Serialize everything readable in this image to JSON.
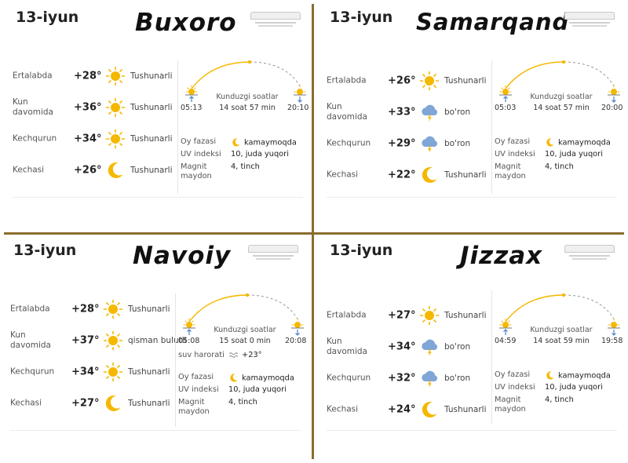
{
  "colors": {
    "divider": "#8a6d2e",
    "sun": "#f5b800",
    "moon": "#f5b800",
    "cloud": "#7fa6d6",
    "arc": "#f5b800"
  },
  "panels": [
    {
      "date": "13-iyun",
      "city": "Buxoro",
      "rows": [
        {
          "label": "Ertalabda",
          "temp": "+28°",
          "icon": "sun-icon",
          "condition": "Tushunarli"
        },
        {
          "label": "Kun davomida",
          "temp": "+36°",
          "icon": "sun-icon",
          "condition": "Tushunarli"
        },
        {
          "label": "Kechqurun",
          "temp": "+34°",
          "icon": "sun-icon",
          "condition": "Tushunarli"
        },
        {
          "label": "Kechasi",
          "temp": "+26°",
          "icon": "moon-icon",
          "condition": "Tushunarli"
        }
      ],
      "sunrise": "05:13",
      "sunset": "20:10",
      "daylight_label": "Kunduzgi soatlar",
      "daylight": "14 soat 57 min",
      "info": [
        {
          "key": "Oy fazasi",
          "value": "kamaymoqda",
          "icon": "moon-icon"
        },
        {
          "key": "UV indeksi",
          "value": "10, juda yuqori"
        },
        {
          "key": "Magnit maydon",
          "value": "4, tinch"
        }
      ]
    },
    {
      "date": "13-iyun",
      "city": "Samarqand",
      "rows": [
        {
          "label": "Ertalabda",
          "temp": "+26°",
          "icon": "sun-icon",
          "condition": "Tushunarli"
        },
        {
          "label": "Kun davomida",
          "temp": "+33°",
          "icon": "storm-cloud-icon",
          "condition": "bo'ron"
        },
        {
          "label": "Kechqurun",
          "temp": "+29°",
          "icon": "storm-cloud-icon",
          "condition": "bo'ron"
        },
        {
          "label": "Kechasi",
          "temp": "+22°",
          "icon": "moon-icon",
          "condition": "Tushunarli"
        }
      ],
      "sunrise": "05:03",
      "sunset": "20:00",
      "daylight_label": "Kunduzgi soatlar",
      "daylight": "14 soat 57 min",
      "info": [
        {
          "key": "Oy fazasi",
          "value": "kamaymoqda",
          "icon": "moon-icon"
        },
        {
          "key": "UV indeksi",
          "value": "10, juda yuqori"
        },
        {
          "key": "Magnit maydon",
          "value": "4, tinch"
        }
      ]
    },
    {
      "date": "13-iyun",
      "city": "Navoiy",
      "rows": [
        {
          "label": "Ertalabda",
          "temp": "+28°",
          "icon": "sun-icon",
          "condition": "Tushunarli"
        },
        {
          "label": "Kun davomida",
          "temp": "+37°",
          "icon": "sun-icon",
          "condition": "qisman bulutli"
        },
        {
          "label": "Kechqurun",
          "temp": "+34°",
          "icon": "sun-icon",
          "condition": "Tushunarli"
        },
        {
          "label": "Kechasi",
          "temp": "+27°",
          "icon": "moon-icon",
          "condition": "Tushunarli"
        }
      ],
      "sunrise": "05:08",
      "sunset": "20:08",
      "daylight_label": "Kunduzgi soatlar",
      "daylight": "15 soat 0 min",
      "info": [
        {
          "key": "suv harorati",
          "value": "+23°",
          "icon": "water-wave-icon"
        },
        {
          "key": "Oy fazasi",
          "value": "kamaymoqda",
          "icon": "moon-icon"
        },
        {
          "key": "UV indeksi",
          "value": "10, juda yuqori"
        },
        {
          "key": "Magnit maydon",
          "value": "4, tinch"
        }
      ]
    },
    {
      "date": "13-iyun",
      "city": "Jizzax",
      "rows": [
        {
          "label": "Ertalabda",
          "temp": "+27°",
          "icon": "sun-icon",
          "condition": "Tushunarli"
        },
        {
          "label": "Kun davomida",
          "temp": "+34°",
          "icon": "storm-cloud-icon",
          "condition": "bo'ron"
        },
        {
          "label": "Kechqurun",
          "temp": "+32°",
          "icon": "storm-cloud-icon",
          "condition": "bo'ron"
        },
        {
          "label": "Kechasi",
          "temp": "+24°",
          "icon": "moon-icon",
          "condition": "Tushunarli"
        }
      ],
      "sunrise": "04:59",
      "sunset": "19:58",
      "daylight_label": "Kunduzgi soatlar",
      "daylight": "14 soat 59 min",
      "info": [
        {
          "key": "Oy fazasi",
          "value": "kamaymoqda",
          "icon": "moon-icon"
        },
        {
          "key": "UV indeksi",
          "value": "10, juda yuqori"
        },
        {
          "key": "Magnit maydon",
          "value": "4, tinch"
        }
      ]
    }
  ]
}
